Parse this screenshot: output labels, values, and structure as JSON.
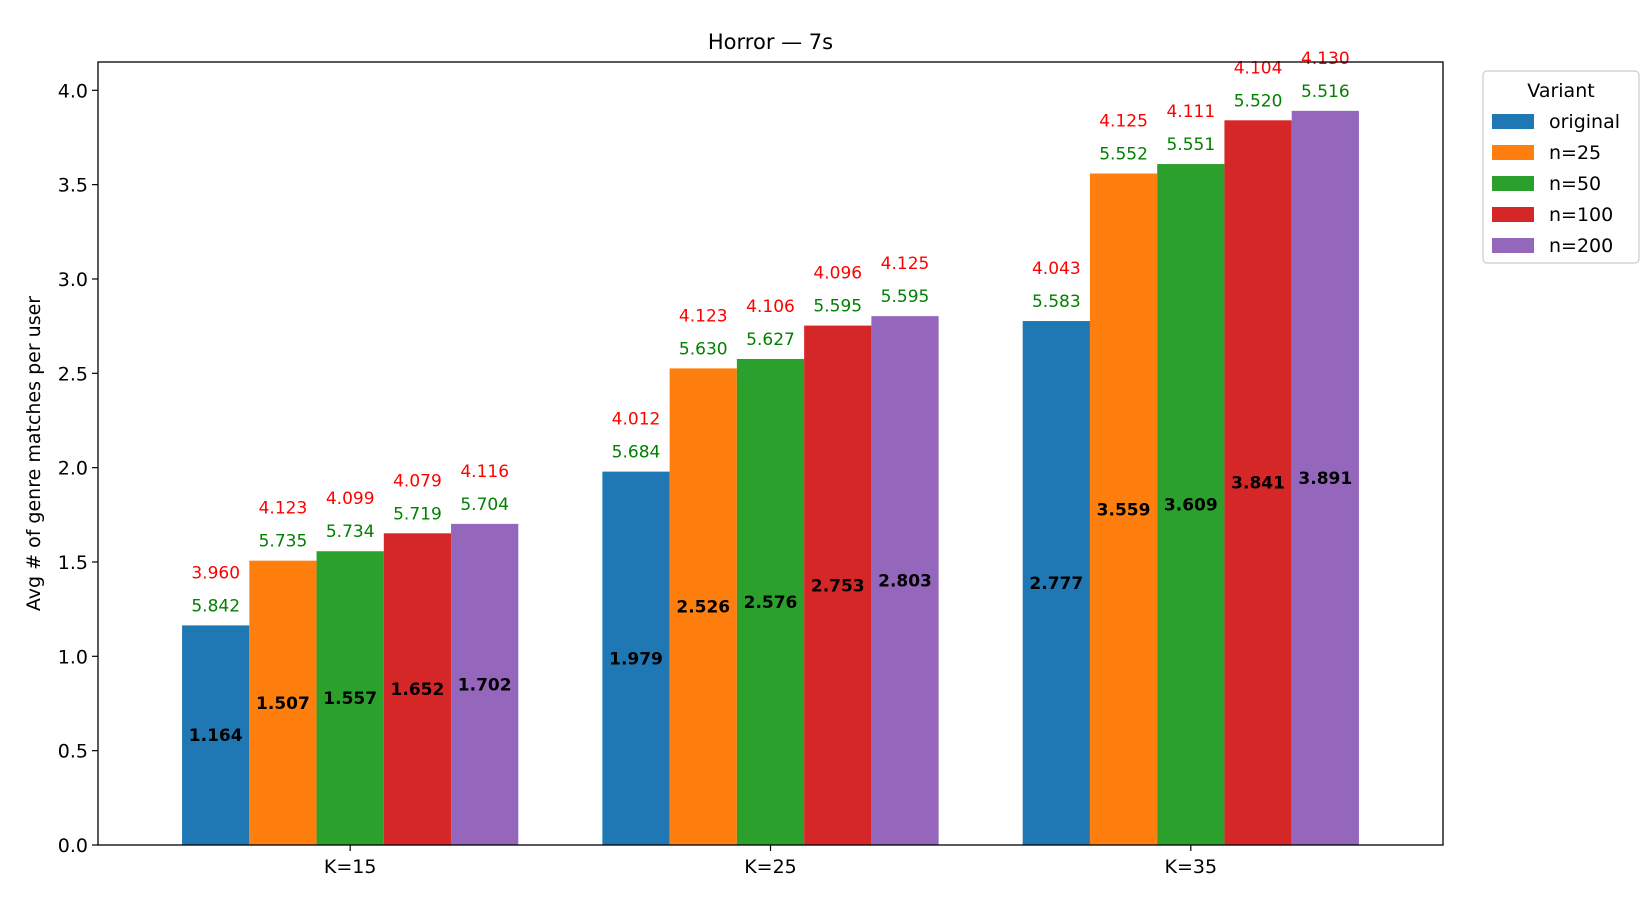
{
  "chart_data": {
    "type": "bar",
    "title": "Horror — 7s",
    "xlabel": "",
    "ylabel": "Avg # of genre matches per user",
    "categories": [
      "K=15",
      "K=25",
      "K=35"
    ],
    "ylim": [
      0,
      4.15
    ],
    "yticks": [
      "0.0",
      "0.5",
      "1.0",
      "1.5",
      "2.0",
      "2.5",
      "3.0",
      "3.5",
      "4.0"
    ],
    "grid": false,
    "legend": {
      "title": "Variant",
      "position": "outside-top-right"
    },
    "series": [
      {
        "name": "original",
        "color": "#1f77b4",
        "values": [
          1.164,
          1.979,
          2.777
        ],
        "values_text": [
          "1.164",
          "1.979",
          "2.777"
        ],
        "green_labels": [
          "5.842",
          "5.684",
          "5.583"
        ],
        "red_labels": [
          "3.960",
          "4.012",
          "4.043"
        ]
      },
      {
        "name": "n=25",
        "color": "#ff7f0e",
        "values": [
          1.507,
          2.526,
          3.559
        ],
        "values_text": [
          "1.507",
          "2.526",
          "3.559"
        ],
        "green_labels": [
          "5.735",
          "5.630",
          "5.552"
        ],
        "red_labels": [
          "4.123",
          "4.123",
          "4.125"
        ]
      },
      {
        "name": "n=50",
        "color": "#2ca02c",
        "values": [
          1.557,
          2.576,
          3.609
        ],
        "values_text": [
          "1.557",
          "2.576",
          "3.609"
        ],
        "green_labels": [
          "5.734",
          "5.627",
          "5.551"
        ],
        "red_labels": [
          "4.099",
          "4.106",
          "4.111"
        ]
      },
      {
        "name": "n=100",
        "color": "#d62728",
        "values": [
          1.652,
          2.753,
          3.841
        ],
        "values_text": [
          "1.652",
          "2.753",
          "3.841"
        ],
        "green_labels": [
          "5.719",
          "5.595",
          "5.520"
        ],
        "red_labels": [
          "4.079",
          "4.096",
          "4.104"
        ]
      },
      {
        "name": "n=200",
        "color": "#9467bd",
        "values": [
          1.702,
          2.803,
          3.891
        ],
        "values_text": [
          "1.702",
          "2.803",
          "3.891"
        ],
        "green_labels": [
          "5.704",
          "5.595",
          "5.516"
        ],
        "red_labels": [
          "4.116",
          "4.125",
          "4.130"
        ]
      }
    ],
    "label_colors": {
      "secondary": "#008000",
      "tertiary": "#ff0000"
    }
  }
}
